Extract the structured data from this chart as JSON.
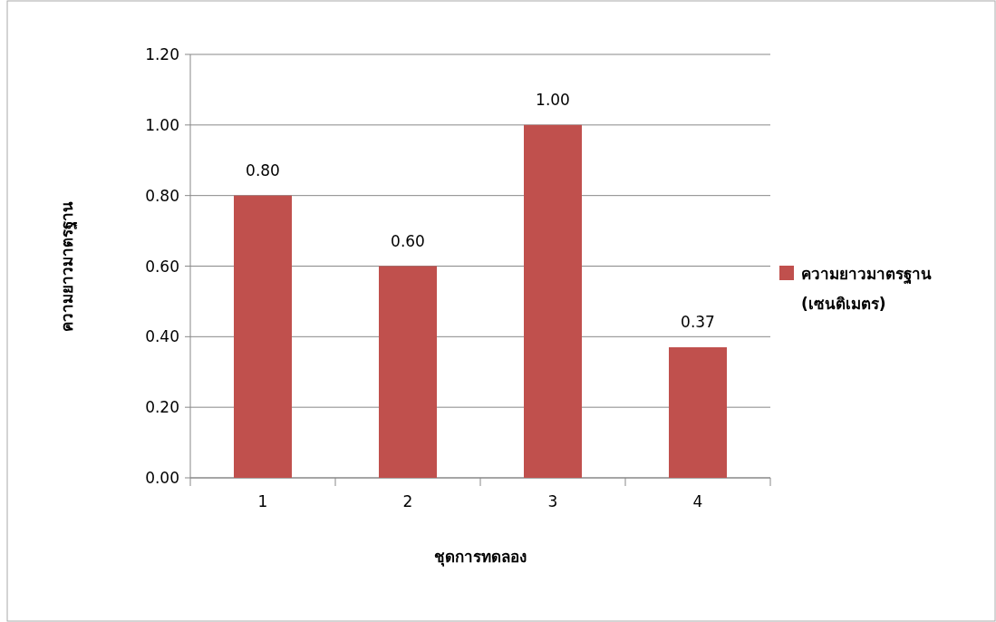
{
  "chart_data": {
    "type": "bar",
    "xlabel": "ชุดการทดลอง",
    "ylabel": "ความยาวมาตรฐาน",
    "categories": [
      "1",
      "2",
      "3",
      "4"
    ],
    "series": [
      {
        "name": "ความยาวมาตรฐาน (เซนติเมตร)",
        "color": "#c0504d",
        "values": [
          0.8,
          0.6,
          1.0,
          0.37
        ],
        "value_labels": [
          "0.80",
          "0.60",
          "1.00",
          "0.37"
        ]
      }
    ],
    "ylim": [
      0,
      1.2
    ],
    "yticks": [
      {
        "value": 0,
        "label": "0.00"
      },
      {
        "value": 0.2,
        "label": "0.20"
      },
      {
        "value": 0.4,
        "label": "0.40"
      },
      {
        "value": 0.6,
        "label": "0.60"
      },
      {
        "value": 0.8,
        "label": "0.80"
      },
      {
        "value": 1.0,
        "label": "1.00"
      },
      {
        "value": 1.2,
        "label": "1.20"
      }
    ],
    "grid": "y",
    "legend": "right"
  }
}
